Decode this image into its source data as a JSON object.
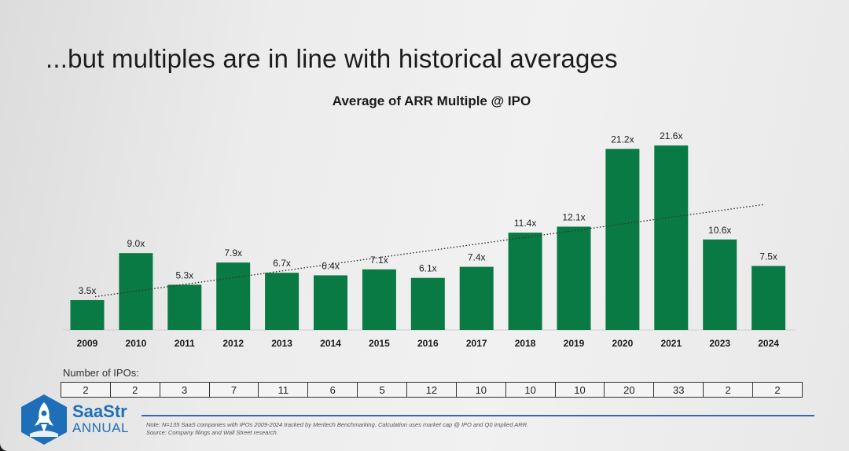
{
  "slide": {
    "title": "...but multiples are in line with historical averages"
  },
  "chart_data": {
    "type": "bar",
    "title": "Average of ARR Multiple @ IPO",
    "categories": [
      "2009",
      "2010",
      "2011",
      "2012",
      "2013",
      "2014",
      "2015",
      "2016",
      "2017",
      "2018",
      "2019",
      "2020",
      "2021",
      "2023",
      "2024"
    ],
    "values": [
      3.5,
      9.0,
      5.3,
      7.9,
      6.7,
      6.4,
      7.1,
      6.1,
      7.4,
      11.4,
      12.1,
      21.2,
      21.6,
      10.6,
      7.5
    ],
    "data_labels": [
      "3.5x",
      "9.0x",
      "5.3x",
      "7.9x",
      "6.7x",
      "6.4x",
      "7.1x",
      "6.1x",
      "7.4x",
      "11.4x",
      "12.1x",
      "21.2x",
      "21.6x",
      "10.6x",
      "7.5x"
    ],
    "trendline": {
      "style": "dotted",
      "from": 3.9,
      "to": 14.7
    },
    "ylim": [
      0,
      23
    ],
    "xlabel": "",
    "ylabel": "",
    "grid": false,
    "bar_color": "#0a7a45"
  },
  "ipo_table": {
    "label": "Number of IPOs:",
    "values": [
      "2",
      "2",
      "3",
      "7",
      "11",
      "6",
      "5",
      "12",
      "10",
      "10",
      "10",
      "20",
      "33",
      "2",
      "2"
    ]
  },
  "footer": {
    "note": "Note: N=135 SaaS companies with IPOs 2009-2024 tracked by Meritech Benchmarking. Calculation uses market cap @ IPO and Q0 implied ARR.",
    "source": "Source: Company filings and Wall Street research."
  },
  "brand": {
    "name": "SaaStr",
    "sub": "ANNUAL",
    "color": "#1f6fb8"
  }
}
